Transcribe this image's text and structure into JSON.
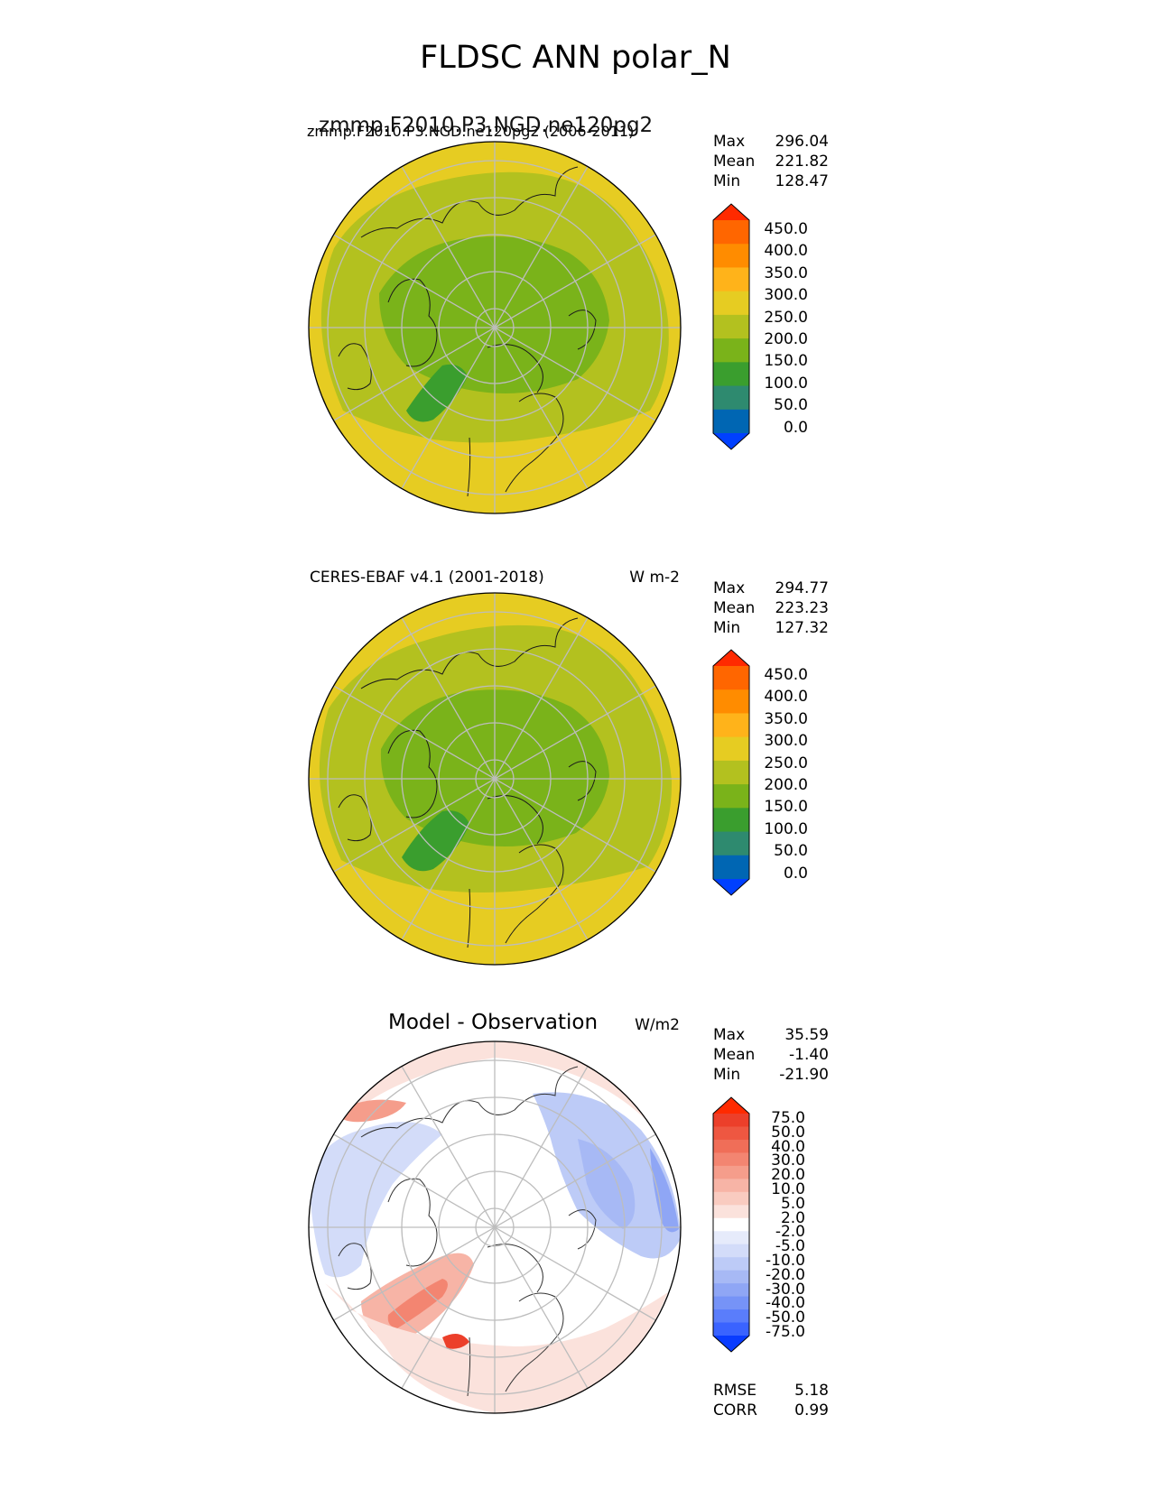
{
  "title": "FLDSC ANN polar_N",
  "panels": [
    {
      "id": "model",
      "title_left": "zmmp.F2010.P3.NGD.ne120pg2 (2006-2011)",
      "title_center": "zmmp.F2010.P3.NGD.ne120pg2",
      "units": "",
      "stats": [
        {
          "label": "Max",
          "value": "296.04"
        },
        {
          "label": "Mean",
          "value": "221.82"
        },
        {
          "label": "Min",
          "value": "128.47"
        }
      ],
      "colorbar": {
        "colors": [
          "#0040ff",
          "#0066b3",
          "#2e8a6f",
          "#3a9e2e",
          "#7ab31a",
          "#b3c11f",
          "#e6cc22",
          "#ffb31a",
          "#ff8c00",
          "#ff6600",
          "#ff2a00"
        ],
        "labels": [
          "450.0",
          "400.0",
          "350.0",
          "300.0",
          "250.0",
          "200.0",
          "150.0",
          "100.0",
          "50.0",
          "0.0"
        ]
      }
    },
    {
      "id": "obs",
      "title_left": "CERES-EBAF v4.1 (2001-2018)",
      "title_center": "",
      "units": "W m-2",
      "stats": [
        {
          "label": "Max",
          "value": "294.77"
        },
        {
          "label": "Mean",
          "value": "223.23"
        },
        {
          "label": "Min",
          "value": "127.32"
        }
      ],
      "colorbar": {
        "colors": [
          "#0040ff",
          "#0066b3",
          "#2e8a6f",
          "#3a9e2e",
          "#7ab31a",
          "#b3c11f",
          "#e6cc22",
          "#ffb31a",
          "#ff8c00",
          "#ff6600",
          "#ff2a00"
        ],
        "labels": [
          "450.0",
          "400.0",
          "350.0",
          "300.0",
          "250.0",
          "200.0",
          "150.0",
          "100.0",
          "50.0",
          "0.0"
        ]
      }
    },
    {
      "id": "diff",
      "title_left": "",
      "title_center": "Model - Observation",
      "units": "W/m2",
      "stats": [
        {
          "label": "Max",
          "value": "35.59"
        },
        {
          "label": "Mean",
          "value": "-1.40"
        },
        {
          "label": "Min",
          "value": "-21.90"
        }
      ],
      "colorbar": {
        "colors": [
          "#0a3cff",
          "#3a63ff",
          "#5a7dfb",
          "#7693f7",
          "#8fa6f5",
          "#a7b9f5",
          "#bdcbf7",
          "#d3dcf9",
          "#e6ebfb",
          "#ffffff",
          "#fbe2dc",
          "#f9cbc0",
          "#f7b4a6",
          "#f59d8b",
          "#f38571",
          "#f06e58",
          "#ee5741",
          "#ec3f2a",
          "#ff2a00"
        ],
        "labels": [
          "75.0",
          "50.0",
          "40.0",
          "30.0",
          "20.0",
          "10.0",
          "5.0",
          "2.0",
          "-2.0",
          "-5.0",
          "-10.0",
          "-20.0",
          "-30.0",
          "-40.0",
          "-50.0",
          "-75.0"
        ]
      },
      "metrics": [
        {
          "label": "RMSE",
          "value": "5.18"
        },
        {
          "label": "CORR",
          "value": "0.99"
        }
      ]
    }
  ]
}
